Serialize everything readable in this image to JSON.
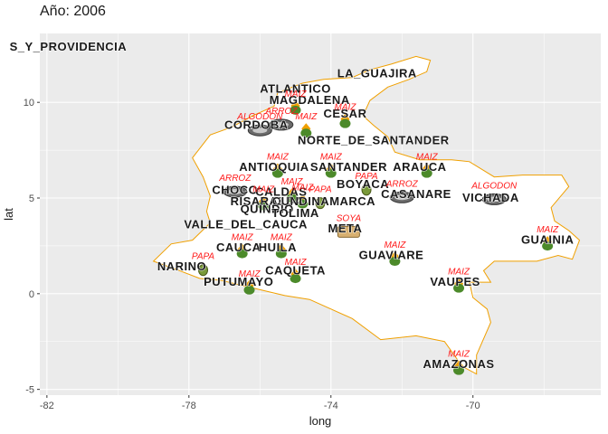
{
  "title": "Año: 2006",
  "colors": {
    "panel": "#ebebeb",
    "grid": "#ffffff",
    "map_fill": "#ffffff",
    "map_border": "#f0a000",
    "crop_label": "#ff1a1a",
    "icon_green": "#4c8a2a",
    "icon_orange": "#f0a000"
  },
  "chart_data": {
    "type": "map",
    "x_axis": {
      "label": "long",
      "ticks": [
        -82,
        -78,
        -74,
        -70
      ],
      "range": [
        -82.2,
        -66.4
      ]
    },
    "y_axis": {
      "label": "lat",
      "ticks": [
        -5,
        0,
        5,
        10
      ],
      "range": [
        -5.3,
        13.6
      ]
    },
    "grid": true,
    "departments": [
      {
        "name": "S_Y_PROVIDENCIA",
        "long": -81.4,
        "lat": 12.9
      },
      {
        "name": "LA_GUAJIRA",
        "long": -72.7,
        "lat": 11.5
      },
      {
        "name": "ATLANTICO",
        "long": -75.0,
        "lat": 10.7
      },
      {
        "name": "MAGDALENA",
        "long": -74.6,
        "lat": 10.1
      },
      {
        "name": "CESAR",
        "long": -73.6,
        "lat": 9.4
      },
      {
        "name": "CORDOBA",
        "long": -76.1,
        "lat": 8.8
      },
      {
        "name": "NORTE_DE_SANTANDER",
        "long": -72.8,
        "lat": 8.0
      },
      {
        "name": "ANTIOQUIA",
        "long": -75.6,
        "lat": 6.6
      },
      {
        "name": "SANTANDER",
        "long": -73.5,
        "lat": 6.6
      },
      {
        "name": "ARAUCA",
        "long": -71.5,
        "lat": 6.6
      },
      {
        "name": "CHOCO",
        "long": -76.7,
        "lat": 5.4
      },
      {
        "name": "CALDAS",
        "long": -75.4,
        "lat": 5.3
      },
      {
        "name": "BOYACA",
        "long": -73.1,
        "lat": 5.7
      },
      {
        "name": "CASANARE",
        "long": -71.6,
        "lat": 5.2
      },
      {
        "name": "VICHADA",
        "long": -69.5,
        "lat": 5.0
      },
      {
        "name": "RISARALDA",
        "long": -75.8,
        "lat": 4.8
      },
      {
        "name": "CUNDINAMARCA",
        "long": -74.2,
        "lat": 4.8
      },
      {
        "name": "QUINDIO",
        "long": -75.8,
        "lat": 4.4
      },
      {
        "name": "TOLIMA",
        "long": -75.0,
        "lat": 4.2
      },
      {
        "name": "VALLE_DEL_CAUCA",
        "long": -76.4,
        "lat": 3.6
      },
      {
        "name": "META",
        "long": -73.6,
        "lat": 3.4
      },
      {
        "name": "GUAINIA",
        "long": -67.9,
        "lat": 2.8
      },
      {
        "name": "CAUCA",
        "long": -76.6,
        "lat": 2.4
      },
      {
        "name": "HUILA",
        "long": -75.5,
        "lat": 2.4
      },
      {
        "name": "GUAVIARE",
        "long": -72.3,
        "lat": 2.0
      },
      {
        "name": "NARINO",
        "long": -78.2,
        "lat": 1.4
      },
      {
        "name": "CAQUETA",
        "long": -75.0,
        "lat": 1.2
      },
      {
        "name": "PUTUMAYO",
        "long": -76.6,
        "lat": 0.6
      },
      {
        "name": "VAUPES",
        "long": -70.5,
        "lat": 0.6
      },
      {
        "name": "AMAZONAS",
        "long": -70.4,
        "lat": -3.7
      }
    ],
    "crops": [
      {
        "crop": "MAIZ",
        "long": -75.0,
        "lat": 10.3,
        "icon": "maize-icon"
      },
      {
        "crop": "MAIZ",
        "long": -73.6,
        "lat": 9.6,
        "icon": "maize-icon"
      },
      {
        "crop": "ARROZ",
        "long": -75.4,
        "lat": 9.4,
        "icon": "rice-icon"
      },
      {
        "crop": "ALGODON",
        "long": -76.0,
        "lat": 9.1,
        "icon": "cotton-icon"
      },
      {
        "crop": "MAIZ",
        "long": -74.7,
        "lat": 9.1,
        "icon": "maize-icon"
      },
      {
        "crop": "MAIZ",
        "long": -75.5,
        "lat": 7.0,
        "icon": "maize-icon"
      },
      {
        "crop": "MAIZ",
        "long": -74.0,
        "lat": 7.0,
        "icon": "maize-icon"
      },
      {
        "crop": "MAIZ",
        "long": -71.3,
        "lat": 7.0,
        "icon": "maize-icon"
      },
      {
        "crop": "ARROZ",
        "long": -76.7,
        "lat": 5.9,
        "icon": "rice-icon"
      },
      {
        "crop": "PAPA",
        "long": -73.0,
        "lat": 6.0,
        "icon": "potato-icon"
      },
      {
        "crop": "MAIZ",
        "long": -75.1,
        "lat": 5.7,
        "icon": "maize-icon"
      },
      {
        "crop": "ARROZ",
        "long": -72.0,
        "lat": 5.6,
        "icon": "rice-icon"
      },
      {
        "crop": "ALGODON",
        "long": -69.4,
        "lat": 5.5,
        "icon": "cotton-icon"
      },
      {
        "crop": "MAIZ",
        "long": -75.9,
        "lat": 5.3,
        "icon": "maize-icon"
      },
      {
        "crop": "MAIZ",
        "long": -74.8,
        "lat": 5.4,
        "icon": "maize-icon"
      },
      {
        "crop": "PAPA",
        "long": -74.3,
        "lat": 5.3,
        "icon": "potato-icon"
      },
      {
        "crop": "SOYA",
        "long": -73.5,
        "lat": 3.8,
        "icon": "soy-icon"
      },
      {
        "crop": "MAIZ",
        "long": -76.5,
        "lat": 2.8,
        "icon": "maize-icon"
      },
      {
        "crop": "MAIZ",
        "long": -75.4,
        "lat": 2.8,
        "icon": "maize-icon"
      },
      {
        "crop": "MAIZ",
        "long": -72.2,
        "lat": 2.4,
        "icon": "maize-icon"
      },
      {
        "crop": "MAIZ",
        "long": -67.9,
        "lat": 3.2,
        "icon": "maize-icon"
      },
      {
        "crop": "PAPA",
        "long": -77.6,
        "lat": 1.8,
        "icon": "potato-icon"
      },
      {
        "crop": "MAIZ",
        "long": -75.0,
        "lat": 1.5,
        "icon": "maize-icon"
      },
      {
        "crop": "MAIZ",
        "long": -76.3,
        "lat": 0.9,
        "icon": "maize-icon"
      },
      {
        "crop": "MAIZ",
        "long": -70.4,
        "lat": 1.0,
        "icon": "maize-icon"
      },
      {
        "crop": "MAIZ",
        "long": -70.4,
        "lat": -3.3,
        "icon": "maize-icon"
      }
    ],
    "country_outline": [
      [
        -77.9,
        7.1
      ],
      [
        -77.4,
        8.3
      ],
      [
        -76.8,
        8.7
      ],
      [
        -76.2,
        9.3
      ],
      [
        -75.6,
        9.8
      ],
      [
        -75.5,
        10.5
      ],
      [
        -74.8,
        11.0
      ],
      [
        -74.2,
        11.2
      ],
      [
        -73.4,
        11.3
      ],
      [
        -72.9,
        11.7
      ],
      [
        -72.3,
        12.0
      ],
      [
        -71.6,
        12.4
      ],
      [
        -71.2,
        12.2
      ],
      [
        -71.3,
        11.6
      ],
      [
        -71.8,
        11.2
      ],
      [
        -72.4,
        10.8
      ],
      [
        -72.9,
        10.1
      ],
      [
        -73.1,
        9.3
      ],
      [
        -72.8,
        8.8
      ],
      [
        -72.4,
        8.2
      ],
      [
        -72.2,
        7.4
      ],
      [
        -71.5,
        7.0
      ],
      [
        -70.6,
        7.0
      ],
      [
        -70.1,
        6.9
      ],
      [
        -69.4,
        6.1
      ],
      [
        -68.6,
        6.2
      ],
      [
        -67.5,
        6.2
      ],
      [
        -67.3,
        5.6
      ],
      [
        -67.8,
        4.5
      ],
      [
        -67.7,
        3.8
      ],
      [
        -67.3,
        3.3
      ],
      [
        -67.0,
        2.8
      ],
      [
        -67.2,
        1.8
      ],
      [
        -67.6,
        2.0
      ],
      [
        -68.2,
        1.7
      ],
      [
        -69.4,
        1.7
      ],
      [
        -69.7,
        1.2
      ],
      [
        -69.5,
        0.6
      ],
      [
        -70.1,
        0.6
      ],
      [
        -70.0,
        -0.2
      ],
      [
        -69.6,
        -0.8
      ],
      [
        -69.5,
        -1.5
      ],
      [
        -69.9,
        -3.2
      ],
      [
        -69.9,
        -4.2
      ],
      [
        -70.3,
        -3.8
      ],
      [
        -70.8,
        -2.5
      ],
      [
        -71.6,
        -2.2
      ],
      [
        -72.6,
        -2.4
      ],
      [
        -73.4,
        -1.3
      ],
      [
        -74.6,
        -0.3
      ],
      [
        -75.3,
        -0.1
      ],
      [
        -76.2,
        0.3
      ],
      [
        -77.1,
        0.7
      ],
      [
        -77.7,
        0.8
      ],
      [
        -78.4,
        1.3
      ],
      [
        -79.0,
        1.7
      ],
      [
        -78.5,
        2.6
      ],
      [
        -77.9,
        2.8
      ],
      [
        -77.4,
        3.7
      ],
      [
        -77.5,
        4.3
      ],
      [
        -77.4,
        5.1
      ],
      [
        -77.6,
        6.1
      ],
      [
        -77.9,
        7.1
      ]
    ]
  }
}
